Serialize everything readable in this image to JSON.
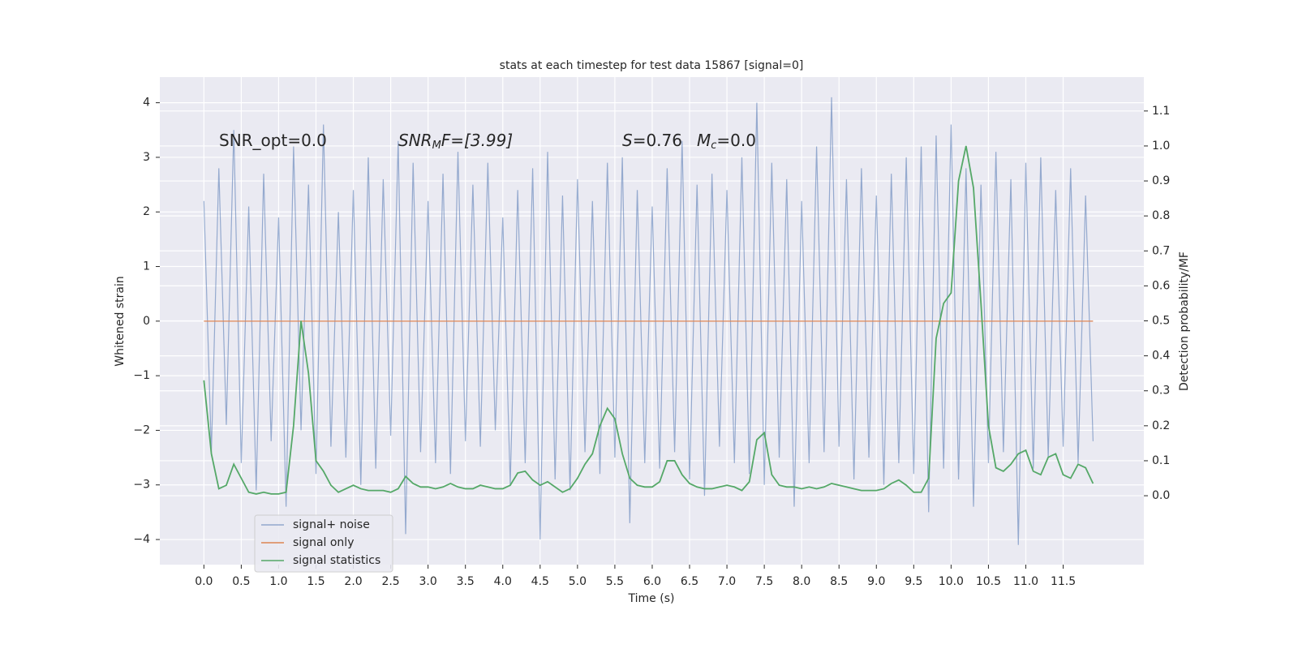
{
  "chart_data": {
    "type": "line",
    "title": "stats at each timestep for test data 15867 [signal=0]",
    "xlabel": "Time (s)",
    "ylabel": "Whitened strain",
    "y2label": "Detection probability/MF",
    "annotations": [
      [
        "SNR_opt=0.0"
      ],
      [
        "SNR",
        "M",
        "F=[3.99]"
      ],
      [
        "S",
        "=0.76",
        "M",
        "c",
        "=0.0"
      ]
    ],
    "grid": true,
    "legend": "lower left",
    "xlim": [
      -0.59,
      12.58
    ],
    "ylim": [
      -4.46,
      4.47
    ],
    "y2lim": [
      -0.197,
      1.197
    ],
    "xticks": [
      {
        "value": 0,
        "label": "0.0"
      },
      {
        "value": 0.5,
        "label": "0.5"
      },
      {
        "value": 1,
        "label": "1.0"
      },
      {
        "value": 1.5,
        "label": "1.5"
      },
      {
        "value": 2,
        "label": "2.0"
      },
      {
        "value": 2.5,
        "label": "2.5"
      },
      {
        "value": 3,
        "label": "3.0"
      },
      {
        "value": 3.5,
        "label": "3.5"
      },
      {
        "value": 4,
        "label": "4.0"
      },
      {
        "value": 4.5,
        "label": "4.5"
      },
      {
        "value": 5,
        "label": "5.0"
      },
      {
        "value": 5.5,
        "label": "5.5"
      },
      {
        "value": 6,
        "label": "6.0"
      },
      {
        "value": 6.5,
        "label": "6.5"
      },
      {
        "value": 7,
        "label": "7.0"
      },
      {
        "value": 7.5,
        "label": "7.5"
      },
      {
        "value": 8,
        "label": "8.0"
      },
      {
        "value": 8.5,
        "label": "8.5"
      },
      {
        "value": 9,
        "label": "9.0"
      },
      {
        "value": 9.5,
        "label": "9.5"
      },
      {
        "value": 10,
        "label": "10.0"
      },
      {
        "value": 10.5,
        "label": "10.5"
      },
      {
        "value": 11,
        "label": "11.0"
      },
      {
        "value": 11.5,
        "label": "11.5"
      }
    ],
    "yticks": [
      {
        "value": -4,
        "label": "−4"
      },
      {
        "value": -3,
        "label": "−3"
      },
      {
        "value": -2,
        "label": "−2"
      },
      {
        "value": -1,
        "label": "−1"
      },
      0,
      1,
      2,
      3,
      4
    ],
    "y2ticks": [
      {
        "value": 0,
        "label": "0.0"
      },
      {
        "value": 0.1,
        "label": "0.1"
      },
      {
        "value": 0.2,
        "label": "0.2"
      },
      {
        "value": 0.3,
        "label": "0.3"
      },
      {
        "value": 0.4,
        "label": "0.4"
      },
      {
        "value": 0.5,
        "label": "0.5"
      },
      {
        "value": 0.6,
        "label": "0.6"
      },
      {
        "value": 0.7,
        "label": "0.7"
      },
      {
        "value": 0.8,
        "label": "0.8"
      },
      {
        "value": 0.9,
        "label": "0.9"
      },
      {
        "value": 1,
        "label": "1.0"
      },
      {
        "value": 1.1,
        "label": "1.1"
      }
    ],
    "x": [
      0,
      0.1,
      0.2,
      0.3,
      0.4,
      0.5,
      0.6,
      0.7,
      0.8,
      0.9,
      1,
      1.1,
      1.2,
      1.3,
      1.4,
      1.5,
      1.6,
      1.7,
      1.8,
      1.9,
      2,
      2.1,
      2.2,
      2.3,
      2.4,
      2.5,
      2.6,
      2.7,
      2.8,
      2.9,
      3,
      3.1,
      3.2,
      3.3,
      3.4,
      3.5,
      3.6,
      3.7,
      3.8,
      3.9,
      4,
      4.1,
      4.2,
      4.3,
      4.4,
      4.5,
      4.6,
      4.7,
      4.8,
      4.9,
      5,
      5.1,
      5.2,
      5.3,
      5.4,
      5.5,
      5.6,
      5.7,
      5.8,
      5.9,
      6,
      6.1,
      6.2,
      6.3,
      6.4,
      6.5,
      6.6,
      6.7,
      6.8,
      6.9,
      7,
      7.1,
      7.2,
      7.3,
      7.4,
      7.5,
      7.6,
      7.7,
      7.8,
      7.9,
      8,
      8.1,
      8.2,
      8.3,
      8.4,
      8.5,
      8.6,
      8.7,
      8.8,
      8.9,
      9,
      9.1,
      9.2,
      9.3,
      9.4,
      9.5,
      9.6,
      9.7,
      9.8,
      9.9,
      10,
      10.1,
      10.2,
      10.3,
      10.4,
      10.5,
      10.6,
      10.7,
      10.8,
      10.9,
      11,
      11.1,
      11.2,
      11.3,
      11.4,
      11.5,
      11.6,
      11.7,
      11.8,
      11.9
    ],
    "series": [
      {
        "name": "signal+ noise",
        "color": "#4c72b0",
        "values": [
          2.2,
          -2.4,
          2.8,
          -1.9,
          3.5,
          -2.6,
          2.1,
          -3.1,
          2.7,
          -2.2,
          1.9,
          -3.4,
          3.2,
          -2.0,
          2.5,
          -2.8,
          3.6,
          -2.3,
          2.0,
          -2.5,
          2.4,
          -3.0,
          3.0,
          -2.7,
          2.6,
          -2.1,
          3.3,
          -3.9,
          2.9,
          -2.4,
          2.2,
          -2.6,
          2.7,
          -2.8,
          3.1,
          -2.2,
          2.5,
          -2.3,
          2.9,
          -2.0,
          1.9,
          -3.0,
          2.4,
          -2.6,
          2.8,
          -4.0,
          3.1,
          -2.9,
          2.3,
          -3.1,
          2.6,
          -2.4,
          2.2,
          -2.8,
          2.9,
          -2.5,
          3.0,
          -3.7,
          2.4,
          -2.6,
          2.1,
          -2.7,
          2.8,
          -2.4,
          3.3,
          -2.9,
          2.5,
          -3.2,
          2.7,
          -2.3,
          2.4,
          -2.6,
          3.0,
          -2.8,
          4.0,
          -3.0,
          2.9,
          -2.5,
          2.6,
          -3.4,
          2.2,
          -2.6,
          3.2,
          -2.4,
          4.1,
          -2.3,
          2.6,
          -2.9,
          2.8,
          -2.5,
          2.3,
          -3.0,
          2.7,
          -2.6,
          3.0,
          -2.8,
          3.2,
          -3.5,
          3.4,
          -2.7,
          3.6,
          -2.9,
          2.8,
          -3.4,
          2.5,
          -2.6,
          3.1,
          -2.4,
          2.6,
          -4.1,
          2.9,
          -2.7,
          3.0,
          -2.5,
          2.4,
          -2.3,
          2.8,
          -2.6,
          2.3,
          -2.2
        ]
      },
      {
        "name": "signal only",
        "color": "#dd8452",
        "values": [
          0,
          0,
          0,
          0,
          0,
          0,
          0,
          0,
          0,
          0,
          0,
          0,
          0,
          0,
          0,
          0,
          0,
          0,
          0,
          0,
          0,
          0,
          0,
          0,
          0,
          0,
          0,
          0,
          0,
          0,
          0,
          0,
          0,
          0,
          0,
          0,
          0,
          0,
          0,
          0,
          0,
          0,
          0,
          0,
          0,
          0,
          0,
          0,
          0,
          0,
          0,
          0,
          0,
          0,
          0,
          0,
          0,
          0,
          0,
          0,
          0,
          0,
          0,
          0,
          0,
          0,
          0,
          0,
          0,
          0,
          0,
          0,
          0,
          0,
          0,
          0,
          0,
          0,
          0,
          0,
          0,
          0,
          0,
          0,
          0,
          0,
          0,
          0,
          0,
          0,
          0,
          0,
          0,
          0,
          0,
          0,
          0,
          0,
          0,
          0,
          0,
          0,
          0,
          0,
          0,
          0,
          0,
          0,
          0,
          0,
          0,
          0,
          0,
          0,
          0,
          0,
          0,
          0,
          0,
          0
        ]
      },
      {
        "name": "signal statistics",
        "color": "#55a868",
        "axis": "y2",
        "values": [
          0.33,
          0.12,
          0.02,
          0.03,
          0.09,
          0.05,
          0.01,
          0.005,
          0.01,
          0.005,
          0.005,
          0.01,
          0.2,
          0.5,
          0.35,
          0.1,
          0.07,
          0.03,
          0.01,
          0.02,
          0.03,
          0.02,
          0.015,
          0.015,
          0.015,
          0.01,
          0.02,
          0.055,
          0.035,
          0.025,
          0.025,
          0.02,
          0.025,
          0.035,
          0.025,
          0.02,
          0.02,
          0.03,
          0.025,
          0.02,
          0.02,
          0.03,
          0.065,
          0.07,
          0.045,
          0.03,
          0.04,
          0.025,
          0.01,
          0.02,
          0.05,
          0.09,
          0.12,
          0.2,
          0.25,
          0.22,
          0.12,
          0.05,
          0.03,
          0.025,
          0.025,
          0.04,
          0.1,
          0.1,
          0.06,
          0.035,
          0.025,
          0.02,
          0.02,
          0.025,
          0.03,
          0.025,
          0.015,
          0.04,
          0.16,
          0.18,
          0.06,
          0.03,
          0.025,
          0.025,
          0.02,
          0.025,
          0.02,
          0.025,
          0.035,
          0.03,
          0.025,
          0.02,
          0.015,
          0.015,
          0.015,
          0.02,
          0.035,
          0.045,
          0.03,
          0.01,
          0.01,
          0.05,
          0.45,
          0.55,
          0.58,
          0.9,
          1.0,
          0.88,
          0.55,
          0.2,
          0.08,
          0.07,
          0.09,
          0.12,
          0.13,
          0.07,
          0.06,
          0.11,
          0.12,
          0.06,
          0.05,
          0.09,
          0.08,
          0.035
        ]
      }
    ]
  }
}
